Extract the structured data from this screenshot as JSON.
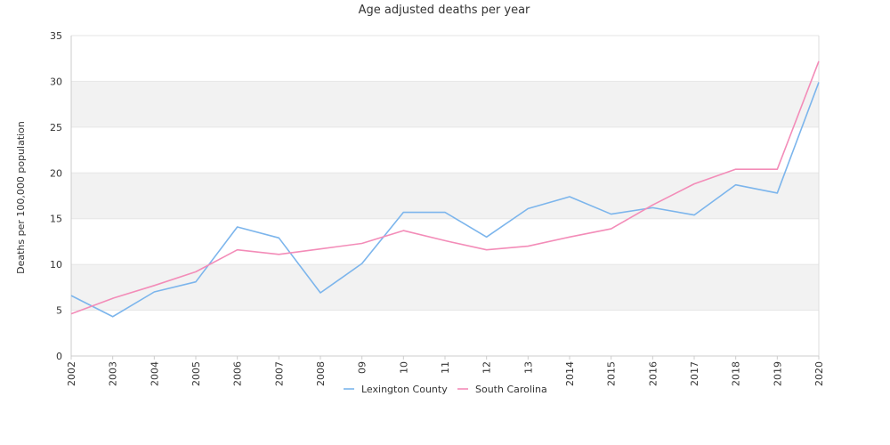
{
  "chart_data": {
    "type": "line",
    "title": "Age adjusted deaths per year",
    "xlabel": "",
    "ylabel": "Deaths per 100,000 population",
    "ylim": [
      0,
      35
    ],
    "yticks": [
      0,
      5,
      10,
      15,
      20,
      25,
      30,
      35
    ],
    "categories": [
      "2002",
      "2003",
      "2004",
      "2005",
      "2006",
      "2007",
      "2008",
      "09",
      "10",
      "11",
      "12",
      "13",
      "2014",
      "2015",
      "2016",
      "2017",
      "2018",
      "2019",
      "2020"
    ],
    "grid": "alternating horizontal bands",
    "legend_position": "bottom",
    "series": [
      {
        "name": "Lexington County",
        "color": "#7cb5ec",
        "values": [
          6.6,
          4.3,
          7.0,
          8.1,
          14.1,
          12.9,
          6.9,
          10.1,
          15.7,
          15.7,
          13.0,
          16.1,
          17.4,
          15.5,
          16.2,
          15.4,
          18.7,
          17.8,
          29.9
        ]
      },
      {
        "name": "South Carolina",
        "color": "#f38cb8",
        "values": [
          4.6,
          6.3,
          7.7,
          9.2,
          11.6,
          11.1,
          11.7,
          12.3,
          13.7,
          12.6,
          11.6,
          12.0,
          13.0,
          13.9,
          16.5,
          18.8,
          20.4,
          20.4,
          32.2
        ]
      }
    ]
  }
}
